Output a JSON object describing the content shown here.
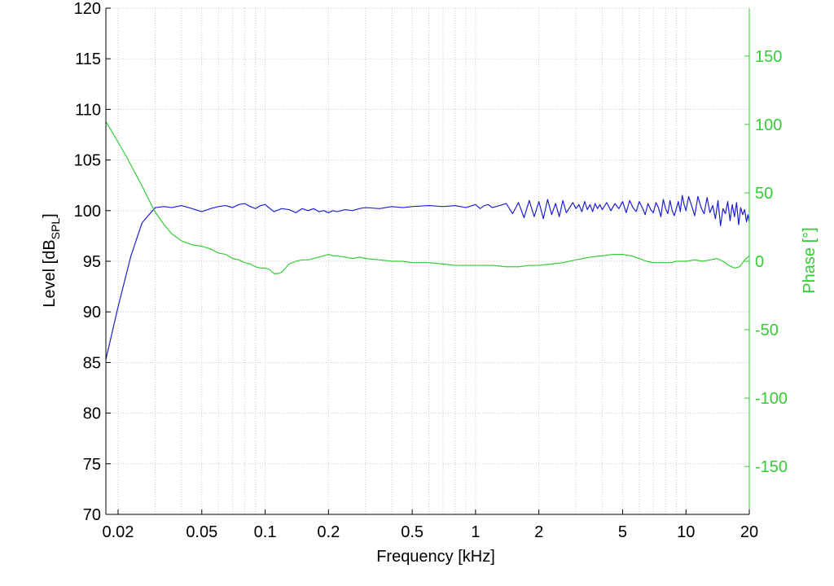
{
  "chart_data": {
    "type": "line",
    "xlabel": "Frequency [kHz]",
    "ylabel": "Level [dB",
    "ylabel_sub": "SPL",
    "ylabel_end": "]",
    "y2label": "Phase [°]",
    "x_scale": "log",
    "xlim": [
      0.0175,
      20
    ],
    "ylim": [
      70,
      120
    ],
    "y2lim": [
      -185,
      185
    ],
    "grid": true,
    "x_ticks": [
      0.02,
      0.05,
      0.1,
      0.2,
      0.5,
      1,
      2,
      5,
      10,
      20
    ],
    "x_tick_labels": [
      "0.02",
      "0.05",
      "0.1",
      "0.2",
      "0.5",
      "1",
      "2",
      "5",
      "10",
      "20"
    ],
    "y_ticks": [
      70,
      75,
      80,
      85,
      90,
      95,
      100,
      105,
      110,
      115,
      120
    ],
    "y_tick_labels": [
      "70",
      "75",
      "80",
      "85",
      "90",
      "95",
      "100",
      "105",
      "110",
      "115",
      "120"
    ],
    "y2_ticks": [
      -150,
      -100,
      -50,
      0,
      50,
      100,
      150
    ],
    "y2_tick_labels": [
      "-150",
      "-100",
      "-50",
      "0",
      "50",
      "100",
      "150"
    ],
    "series": [
      {
        "axis": "left",
        "color": "#1f1fd6",
        "x": [
          0.0175,
          0.02,
          0.023,
          0.026,
          0.03,
          0.033,
          0.036,
          0.04,
          0.045,
          0.05,
          0.055,
          0.06,
          0.065,
          0.07,
          0.075,
          0.08,
          0.085,
          0.09,
          0.095,
          0.1,
          0.11,
          0.12,
          0.13,
          0.14,
          0.15,
          0.16,
          0.17,
          0.18,
          0.19,
          0.2,
          0.21,
          0.22,
          0.24,
          0.26,
          0.28,
          0.3,
          0.35,
          0.4,
          0.45,
          0.5,
          0.6,
          0.7,
          0.8,
          0.9,
          1.0,
          1.05,
          1.1,
          1.15,
          1.2,
          1.3,
          1.4,
          1.5,
          1.6,
          1.7,
          1.8,
          1.9,
          2.0,
          2.1,
          2.2,
          2.3,
          2.4,
          2.5,
          2.6,
          2.7,
          2.8,
          2.9,
          3.0,
          3.1,
          3.2,
          3.3,
          3.4,
          3.5,
          3.6,
          3.7,
          3.8,
          3.9,
          4.0,
          4.2,
          4.4,
          4.6,
          4.8,
          5.0,
          5.2,
          5.4,
          5.6,
          5.8,
          6.0,
          6.2,
          6.4,
          6.6,
          6.8,
          7.0,
          7.2,
          7.4,
          7.6,
          7.8,
          8.0,
          8.2,
          8.4,
          8.6,
          8.8,
          9.0,
          9.2,
          9.4,
          9.6,
          9.8,
          10.0,
          10.3,
          10.6,
          11.0,
          11.4,
          11.8,
          12.2,
          12.6,
          13.0,
          13.4,
          13.8,
          14.2,
          14.6,
          15.0,
          15.4,
          15.8,
          16.2,
          16.6,
          17.0,
          17.4,
          17.8,
          18.2,
          18.6,
          19.0,
          19.4,
          19.7,
          20.0
        ],
        "y": [
          85.3,
          90.5,
          95.5,
          98.8,
          100.3,
          100.4,
          100.3,
          100.5,
          100.2,
          99.9,
          100.2,
          100.4,
          100.5,
          100.3,
          100.6,
          100.7,
          100.4,
          100.2,
          100.5,
          100.6,
          99.9,
          100.2,
          100.1,
          99.8,
          100.2,
          100.0,
          100.2,
          99.9,
          100.0,
          99.8,
          100.0,
          99.9,
          100.1,
          100.0,
          100.2,
          100.3,
          100.2,
          100.4,
          100.3,
          100.4,
          100.5,
          100.4,
          100.5,
          100.3,
          100.6,
          100.2,
          100.5,
          100.6,
          100.3,
          100.5,
          100.7,
          99.7,
          100.8,
          99.3,
          101.0,
          99.4,
          100.9,
          99.2,
          101.1,
          99.6,
          100.7,
          99.4,
          101.0,
          99.8,
          100.3,
          100.8,
          100.2,
          100.6,
          99.9,
          100.9,
          100.1,
          100.6,
          99.9,
          100.7,
          100.2,
          100.6,
          100.1,
          100.8,
          100.0,
          100.7,
          100.2,
          100.9,
          99.8,
          101.0,
          100.3,
          99.9,
          100.9,
          100.3,
          99.6,
          100.7,
          100.1,
          99.8,
          100.8,
          100.3,
          99.4,
          101.1,
          100.2,
          99.7,
          101.0,
          100.0,
          99.5,
          100.2,
          100.9,
          99.9,
          101.5,
          100.6,
          100.0,
          101.4,
          100.6,
          99.5,
          101.4,
          100.3,
          99.7,
          101.3,
          99.8,
          100.5,
          99.2,
          101.0,
          98.5,
          100.2,
          99.7,
          100.9,
          99.0,
          100.6,
          99.4,
          100.8,
          98.6,
          100.3,
          99.6,
          100.1,
          98.9,
          99.6,
          98.9
        ]
      },
      {
        "axis": "right",
        "color": "#33cc33",
        "x": [
          0.0175,
          0.0185,
          0.02,
          0.022,
          0.024,
          0.026,
          0.028,
          0.03,
          0.033,
          0.036,
          0.04,
          0.045,
          0.05,
          0.055,
          0.06,
          0.065,
          0.07,
          0.075,
          0.08,
          0.085,
          0.09,
          0.095,
          0.1,
          0.105,
          0.11,
          0.115,
          0.12,
          0.13,
          0.14,
          0.15,
          0.16,
          0.17,
          0.18,
          0.19,
          0.2,
          0.21,
          0.22,
          0.24,
          0.26,
          0.28,
          0.3,
          0.35,
          0.4,
          0.45,
          0.5,
          0.6,
          0.7,
          0.8,
          0.9,
          1.0,
          1.2,
          1.4,
          1.6,
          1.8,
          2.0,
          2.3,
          2.6,
          3.0,
          3.5,
          4.0,
          4.5,
          5.0,
          5.5,
          6.0,
          6.5,
          7.0,
          7.5,
          8.0,
          8.5,
          9.0,
          10.0,
          11.0,
          12.0,
          13.0,
          14.0,
          15.0,
          16.0,
          17.0,
          18.0,
          19.0,
          20.0
        ],
        "y": [
          102,
          96,
          87,
          76,
          65,
          55,
          45,
          36,
          27,
          20,
          15,
          12,
          11,
          9,
          6,
          5,
          2,
          1,
          -1,
          -2,
          -4,
          -5,
          -5,
          -6,
          -9,
          -9,
          -8,
          -2,
          0,
          1,
          1,
          2,
          3,
          4,
          5,
          4,
          4,
          3,
          2,
          3,
          2,
          1,
          0,
          0,
          -1,
          -1,
          -2,
          -3,
          -3,
          -3,
          -3,
          -4,
          -4,
          -3,
          -3,
          -2,
          -1,
          1,
          3,
          4,
          5,
          5,
          4,
          2,
          0,
          -1,
          -1,
          -1,
          -1,
          0,
          0,
          1,
          0,
          1,
          2,
          0,
          -3,
          -5,
          -4,
          1,
          4
        ]
      }
    ]
  }
}
